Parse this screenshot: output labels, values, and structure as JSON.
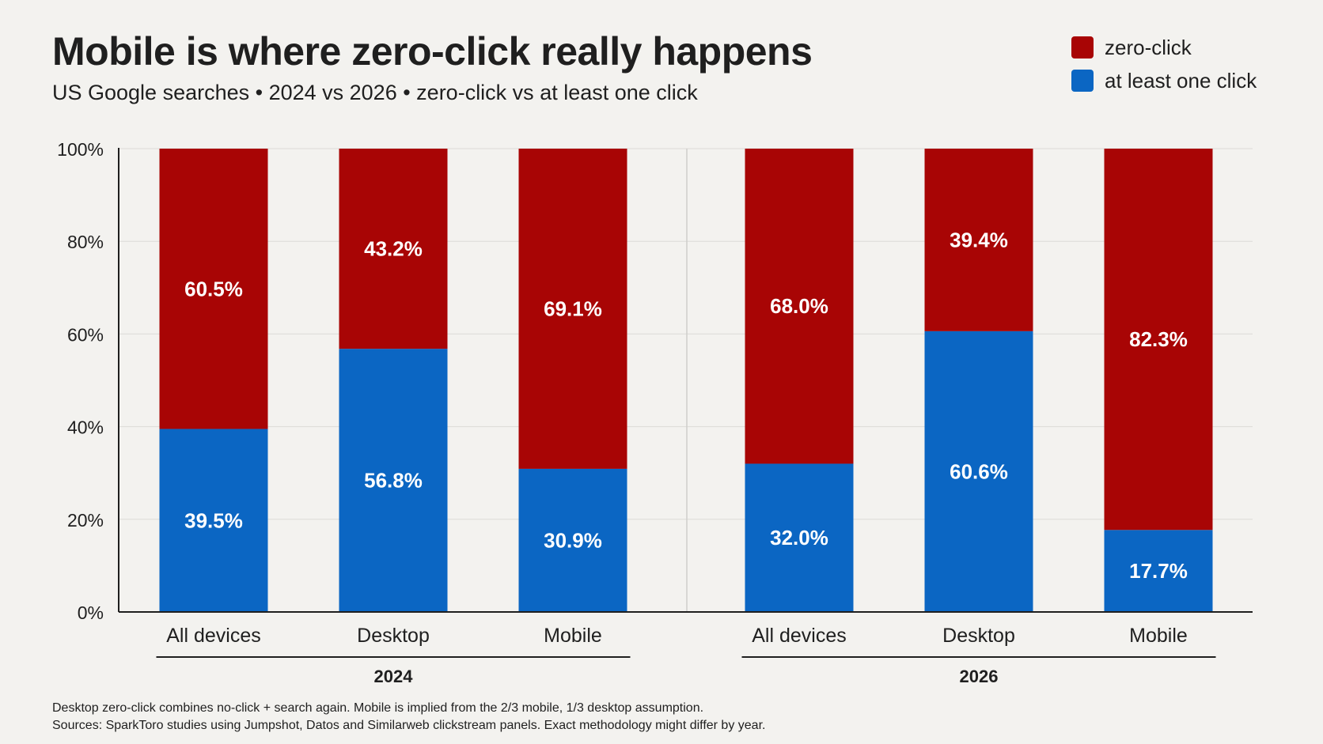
{
  "title": "Mobile is where zero-click really happens",
  "subtitle": "US Google searches • 2024 vs 2026 • zero-click vs at least one click",
  "legend": [
    {
      "label": "zero-click",
      "color": "#a80505"
    },
    {
      "label": "at least one click",
      "color": "#0b66c3"
    }
  ],
  "footnote": [
    "Desktop zero-click combines no-click + search again. Mobile is implied from the 2/3 mobile, 1/3 desktop assumption.",
    "Sources: SparkToro studies using Jumpshot, Datos and Similarweb clickstream panels. Exact methodology might differ by year."
  ],
  "chart_data": {
    "type": "bar",
    "stacked": true,
    "ylim": [
      0,
      100
    ],
    "yticks": [
      "0%",
      "20%",
      "40%",
      "60%",
      "80%",
      "100%"
    ],
    "groups": [
      {
        "label": "2024",
        "categories": [
          "All devices",
          "Desktop",
          "Mobile"
        ]
      },
      {
        "label": "2026",
        "categories": [
          "All devices",
          "Desktop",
          "Mobile"
        ]
      }
    ],
    "series": [
      {
        "name": "at least one click",
        "color": "#0b66c3",
        "values": [
          39.5,
          56.8,
          30.9,
          32.0,
          60.6,
          17.7
        ],
        "labels": [
          "39.5%",
          "56.8%",
          "30.9%",
          "32.0%",
          "60.6%",
          "17.7%"
        ]
      },
      {
        "name": "zero-click",
        "color": "#a80505",
        "values": [
          60.5,
          43.2,
          69.1,
          68.0,
          39.4,
          82.3
        ],
        "labels": [
          "60.5%",
          "43.2%",
          "69.1%",
          "68.0%",
          "39.4%",
          "82.3%"
        ]
      }
    ],
    "grid": true,
    "legend_position": "top-right"
  }
}
